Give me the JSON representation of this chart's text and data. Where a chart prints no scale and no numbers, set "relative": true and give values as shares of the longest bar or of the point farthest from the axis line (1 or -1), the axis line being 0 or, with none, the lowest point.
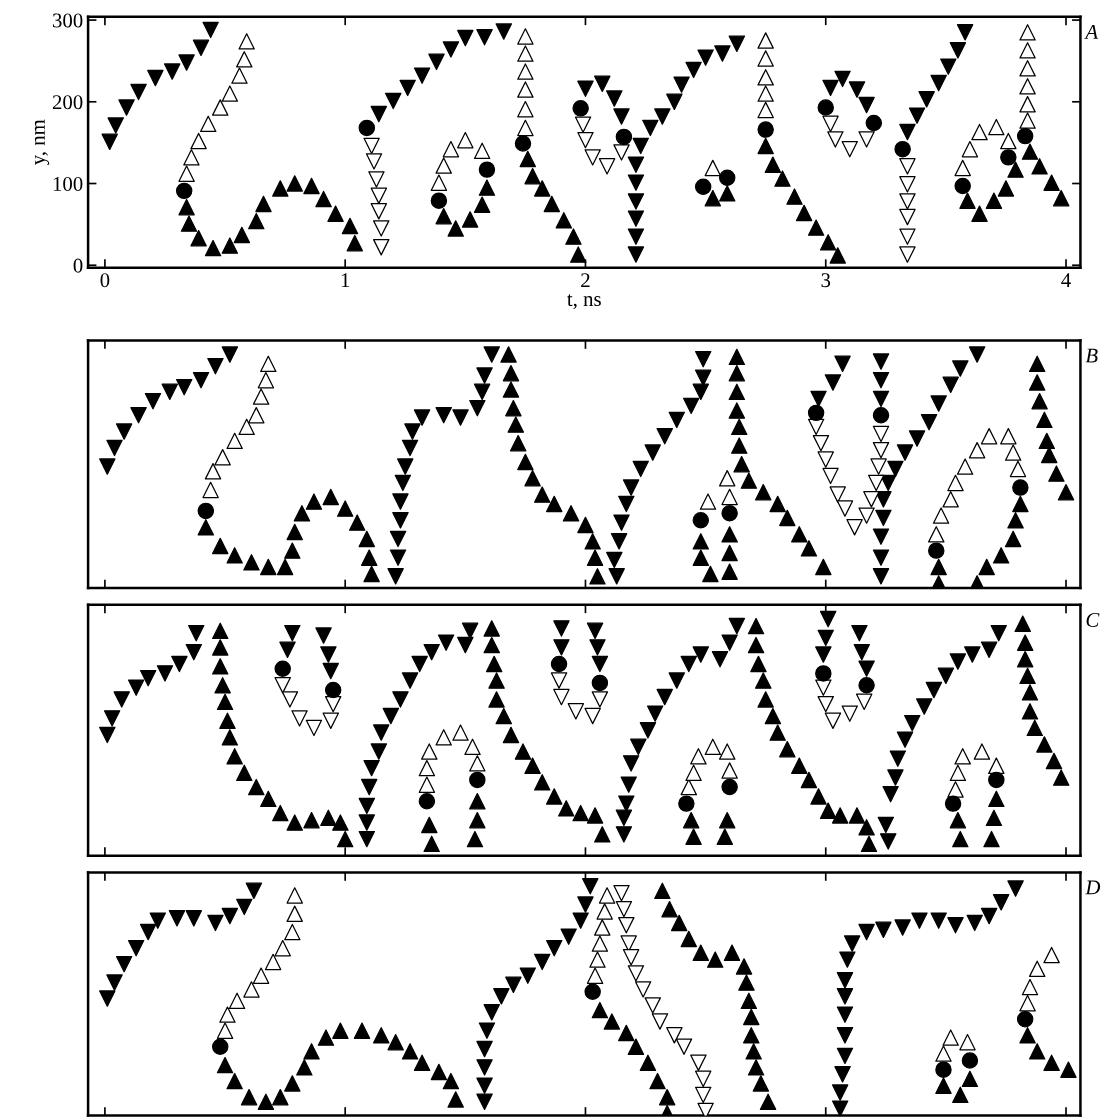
{
  "chart_data": [
    {
      "type": "scatter",
      "xlabel": "t, ns",
      "ylabel": "y, nm",
      "annotations": [
        "A"
      ],
      "xlim": [
        -0.07,
        4.06
      ],
      "ylim": [
        -3,
        304
      ],
      "xticks": [
        0,
        1,
        2,
        3,
        4
      ],
      "yticks": [
        0,
        100,
        200,
        300
      ],
      "grid": false,
      "legend": false,
      "series": [
        {
          "marker": "triangle_down",
          "color": "#000000",
          "x": [
            0.02,
            0.045,
            0.09,
            0.14,
            0.21,
            0.28,
            0.34,
            0.4,
            0.44,
            1.14,
            1.2,
            1.26,
            1.32,
            1.38,
            1.44,
            1.5,
            1.58,
            1.66,
            2.0,
            2.07,
            2.12,
            2.15,
            2.23,
            2.27,
            2.32,
            2.37,
            2.4,
            2.45,
            2.5,
            2.57,
            2.63,
            2.21,
            2.21,
            2.21,
            2.21,
            2.21,
            2.21,
            3.02,
            3.07,
            3.13,
            3.17,
            3.34,
            3.38,
            3.42,
            3.47,
            3.51,
            3.55,
            3.58
          ],
          "values": [
            151,
            171,
            193,
            212,
            229,
            237,
            248,
            266,
            288,
            185,
            201,
            217,
            232,
            249,
            264,
            278,
            279,
            286,
            216,
            222,
            204,
            182,
            146,
            168,
            182,
            200,
            221,
            239,
            254,
            259,
            271,
            123,
            101,
            78,
            57,
            35,
            13,
            217,
            228,
            215,
            196,
            163,
            183,
            203,
            223,
            243,
            263,
            285
          ]
        },
        {
          "marker": "triangle",
          "color": "#000000",
          "x": [
            0.34,
            0.35,
            0.39,
            0.45,
            0.52,
            0.57,
            0.63,
            0.66,
            0.73,
            0.79,
            0.86,
            0.91,
            0.96,
            1.02,
            1.04,
            1.41,
            1.46,
            1.52,
            1.57,
            1.59,
            1.76,
            1.78,
            1.82,
            1.86,
            1.91,
            1.95,
            1.97,
            2.53,
            2.59,
            2.75,
            2.78,
            2.82,
            2.87,
            2.91,
            2.96,
            3.01,
            3.05,
            3.59,
            3.64,
            3.7,
            3.75,
            3.79,
            3.85,
            3.89,
            3.94,
            3.98
          ],
          "values": [
            71,
            51,
            33,
            21,
            24,
            37,
            54,
            75,
            94,
            100,
            97,
            81,
            63,
            48,
            27,
            60,
            45,
            56,
            74,
            95,
            130,
            109,
            94,
            75,
            55,
            35,
            13,
            82,
            88,
            146,
            123,
            106,
            84,
            64,
            46,
            28,
            12,
            79,
            63,
            79,
            94,
            117,
            139,
            121,
            101,
            82
          ]
        },
        {
          "marker": "triangle",
          "color": "#ffffff",
          "x": [
            0.34,
            0.36,
            0.39,
            0.43,
            0.48,
            0.52,
            0.56,
            0.58,
            0.59,
            1.39,
            1.41,
            1.44,
            1.5,
            1.57,
            1.75,
            1.75,
            1.75,
            1.75,
            1.75,
            1.75,
            2.53,
            2.75,
            2.75,
            2.75,
            2.75,
            2.75,
            3.57,
            3.6,
            3.64,
            3.71,
            3.76,
            3.84,
            3.84,
            3.84,
            3.84,
            3.84,
            3.84
          ],
          "values": [
            112,
            132,
            152,
            173,
            193,
            210,
            232,
            252,
            274,
            101,
            122,
            142,
            153,
            140,
            168,
            191,
            215,
            237,
            259,
            280,
            119,
            190,
            210,
            230,
            253,
            275,
            119,
            142,
            163,
            169,
            152,
            177,
            197,
            219,
            241,
            263,
            285
          ]
        },
        {
          "marker": "triangle_down",
          "color": "#ffffff",
          "x": [
            1.11,
            1.12,
            1.13,
            1.14,
            1.14,
            1.15,
            1.15,
            1.99,
            2.0,
            2.03,
            2.09,
            2.15,
            3.02,
            3.04,
            3.1,
            3.17,
            3.34,
            3.34,
            3.34,
            3.34,
            3.34,
            3.34
          ],
          "values": [
            146,
            127,
            105,
            85,
            66,
            45,
            22,
            172,
            153,
            132,
            121,
            138,
            173,
            154,
            142,
            154,
            121,
            99,
            78,
            59,
            35,
            13
          ]
        },
        {
          "marker": "circle",
          "color": "#000000",
          "x": [
            0.33,
            1.09,
            1.39,
            1.59,
            1.74,
            1.98,
            2.16,
            2.49,
            2.59,
            2.75,
            3.0,
            3.2,
            3.32,
            3.57,
            3.76,
            3.83
          ],
          "values": [
            91,
            168,
            79,
            117,
            149,
            192,
            157,
            96,
            107,
            166,
            193,
            174,
            142,
            97,
            132,
            158
          ]
        }
      ]
    },
    {
      "type": "scatter",
      "relative": true,
      "annotations": [
        "B"
      ],
      "xlim": [
        -0.07,
        4.06
      ],
      "xticks": [
        0,
        1,
        2,
        3,
        4
      ],
      "tick_labels": false,
      "grid": false,
      "legend": false,
      "series": [
        {
          "marker": "triangle_down",
          "color": "#000000",
          "x": [
            0.01,
            0.04,
            0.08,
            0.14,
            0.2,
            0.27,
            0.33,
            0.4,
            0.46,
            0.52,
            1.21,
            1.22,
            1.22,
            1.23,
            1.23,
            1.24,
            1.25,
            1.27,
            1.28,
            1.32,
            1.41,
            1.48,
            1.55,
            1.57,
            1.58,
            1.61,
            2.13,
            2.12,
            2.14,
            2.15,
            2.17,
            2.19,
            2.23,
            2.28,
            2.33,
            2.38,
            2.44,
            2.48,
            2.49,
            2.49,
            2.97,
            3.03,
            3.07,
            3.23,
            3.23,
            3.23,
            3.26,
            3.24,
            3.24,
            3.23,
            3.23,
            3.23,
            3.29,
            3.33,
            3.38,
            3.43,
            3.47,
            3.52,
            3.56,
            3.63
          ],
          "values": [
            0.52,
            0.6,
            0.67,
            0.74,
            0.8,
            0.84,
            0.86,
            0.89,
            0.95,
            1.0,
            0.05,
            0.13,
            0.21,
            0.29,
            0.37,
            0.45,
            0.52,
            0.6,
            0.67,
            0.73,
            0.74,
            0.73,
            0.77,
            0.84,
            0.91,
            1.0,
            0.05,
            0.12,
            0.2,
            0.28,
            0.36,
            0.43,
            0.51,
            0.58,
            0.65,
            0.72,
            0.78,
            0.84,
            0.9,
            0.98,
            0.81,
            0.88,
            0.96,
            0.97,
            0.89,
            0.81,
            0.45,
            0.38,
            0.3,
            0.22,
            0.13,
            0.05,
            0.51,
            0.58,
            0.64,
            0.71,
            0.79,
            0.87,
            0.94,
            1.0
          ]
        },
        {
          "marker": "triangle",
          "color": "#000000",
          "x": [
            0.42,
            0.48,
            0.54,
            0.61,
            0.68,
            0.75,
            0.78,
            0.79,
            0.82,
            0.87,
            0.94,
            1.0,
            1.05,
            1.09,
            1.1,
            1.11,
            1.68,
            1.69,
            1.69,
            1.7,
            1.71,
            1.72,
            1.75,
            1.78,
            1.82,
            1.87,
            1.94,
            2.0,
            2.03,
            2.04,
            2.05,
            2.48,
            2.48,
            2.52,
            2.6,
            2.6,
            2.6,
            2.63,
            2.63,
            2.63,
            2.63,
            2.64,
            2.64,
            2.65,
            2.68,
            2.74,
            2.8,
            2.84,
            2.89,
            2.93,
            2.99,
            3.47,
            3.47,
            3.63,
            3.67,
            3.73,
            3.78,
            3.79,
            3.81,
            3.88,
            3.88,
            3.89,
            3.91,
            3.92,
            3.93,
            3.96,
            4.0
          ],
          "values": [
            0.26,
            0.18,
            0.14,
            0.11,
            0.09,
            0.09,
            0.16,
            0.24,
            0.32,
            0.37,
            0.39,
            0.34,
            0.28,
            0.21,
            0.13,
            0.06,
            1.0,
            0.92,
            0.85,
            0.77,
            0.7,
            0.62,
            0.54,
            0.47,
            0.4,
            0.36,
            0.32,
            0.27,
            0.2,
            0.13,
            0.05,
            0.2,
            0.13,
            0.06,
            0.23,
            0.15,
            0.07,
            0.99,
            0.92,
            0.84,
            0.76,
            0.69,
            0.61,
            0.53,
            0.46,
            0.41,
            0.36,
            0.3,
            0.23,
            0.17,
            0.09,
            0.09,
            0.02,
            0.02,
            0.09,
            0.14,
            0.21,
            0.29,
            0.36,
            0.96,
            0.88,
            0.8,
            0.72,
            0.63,
            0.57,
            0.49,
            0.41
          ]
        },
        {
          "marker": "triangle",
          "color": "#ffffff",
          "x": [
            0.44,
            0.45,
            0.49,
            0.54,
            0.59,
            0.63,
            0.65,
            0.67,
            0.68,
            2.49,
            2.51,
            2.59,
            2.6,
            3.46,
            3.48,
            3.52,
            3.54,
            3.58,
            3.63,
            3.68,
            3.76,
            3.78,
            3.8
          ],
          "values": [
            0.42,
            0.5,
            0.56,
            0.63,
            0.69,
            0.74,
            0.82,
            0.89,
            0.96,
            null,
            0.37,
            0.47,
            0.39,
            0.23,
            0.31,
            0.38,
            0.45,
            0.52,
            0.59,
            0.65,
            0.65,
            0.58,
            0.51
          ]
        },
        {
          "marker": "triangle_down",
          "color": "#ffffff",
          "x": [
            2.96,
            2.98,
            3.0,
            3.02,
            3.05,
            3.08,
            3.12,
            3.17,
            3.19,
            3.21,
            3.22,
            3.23,
            3.23
          ],
          "values": [
            0.69,
            0.62,
            0.55,
            0.48,
            0.4,
            0.34,
            0.26,
            0.31,
            0.38,
            0.45,
            0.52,
            0.59,
            0.66
          ]
        },
        {
          "marker": "circle",
          "color": "#000000",
          "x": [
            0.42,
            2.48,
            2.6,
            2.96,
            3.23,
            3.46,
            3.81
          ],
          "values": [
            0.33,
            0.29,
            0.32,
            0.75,
            0.74,
            0.16,
            0.43
          ]
        }
      ]
    },
    {
      "type": "scatter",
      "relative": true,
      "annotations": [
        "C"
      ],
      "xlim": [
        -0.07,
        4.06
      ],
      "xticks": [
        0,
        1,
        2,
        3,
        4
      ],
      "tick_labels": false,
      "grid": false,
      "legend": false,
      "series": [
        {
          "marker": "triangle_down",
          "color": "#000000",
          "x": [
            0.01,
            0.03,
            0.07,
            0.13,
            0.18,
            0.25,
            0.31,
            0.37,
            0.38,
            0.78,
            0.76,
            0.91,
            0.93,
            0.94,
            1.09,
            1.09,
            1.09,
            1.1,
            1.11,
            1.14,
            1.15,
            1.19,
            1.23,
            1.27,
            1.31,
            1.36,
            1.42,
            1.5,
            1.52,
            1.9,
            1.9,
            2.04,
            2.05,
            2.06,
            2.16,
            2.16,
            2.17,
            2.18,
            2.19,
            2.22,
            2.26,
            2.29,
            2.33,
            2.38,
            2.43,
            2.48,
            2.56,
            2.6,
            2.63,
            3.01,
            3.0,
            2.99,
            3.14,
            3.15,
            3.17,
            3.26,
            3.25,
            3.27,
            3.29,
            3.3,
            3.33,
            3.36,
            3.41,
            3.45,
            3.5,
            3.55,
            3.61,
            3.68,
            3.72
          ],
          "values": [
            0.51,
            0.58,
            0.66,
            0.71,
            0.75,
            0.77,
            0.81,
            0.86,
            0.94,
            0.94,
            0.87,
            0.93,
            0.85,
            0.78,
            0.14,
            0.07,
            0.21,
            0.29,
            0.37,
            0.44,
            0.52,
            0.59,
            0.66,
            0.74,
            0.81,
            0.86,
            0.9,
            0.89,
            0.95,
            0.96,
            0.88,
            0.95,
            0.88,
            0.81,
            0.09,
            0.16,
            0.22,
            0.3,
            0.39,
            0.46,
            0.53,
            0.6,
            0.67,
            0.74,
            0.81,
            0.85,
            0.83,
            0.9,
            0.97,
            1.0,
            0.92,
            0.85,
            0.94,
            0.86,
            0.79,
            0.06,
            0.13,
            0.26,
            0.33,
            0.41,
            0.49,
            0.56,
            0.63,
            0.7,
            0.76,
            0.82,
            0.85,
            0.87,
            0.94
          ]
        },
        {
          "marker": "triangle",
          "color": "#000000",
          "x": [
            0.48,
            0.48,
            0.48,
            0.49,
            0.5,
            0.51,
            0.52,
            0.54,
            0.58,
            0.63,
            0.68,
            0.73,
            0.79,
            0.86,
            0.93,
            0.98,
            1.0,
            1.35,
            1.36,
            1.55,
            1.55,
            1.54,
            1.61,
            1.61,
            1.62,
            1.63,
            1.63,
            1.66,
            1.69,
            1.74,
            1.78,
            1.82,
            1.87,
            1.92,
            1.98,
            2.04,
            2.07,
            2.44,
            2.45,
            2.59,
            2.58,
            2.71,
            2.71,
            2.72,
            2.74,
            2.75,
            2.78,
            2.8,
            2.84,
            2.89,
            2.93,
            2.97,
            3.01,
            3.06,
            3.13,
            3.17,
            3.18,
            3.55,
            3.56,
            3.71,
            3.7,
            3.69,
            3.82,
            3.83,
            3.83,
            3.84,
            3.85,
            3.85,
            3.87,
            3.91,
            3.95,
            3.98
          ],
          "values": [
            0.95,
            0.88,
            0.8,
            0.72,
            0.65,
            0.57,
            0.5,
            0.42,
            0.35,
            0.29,
            0.24,
            0.18,
            0.14,
            0.15,
            0.16,
            0.14,
            0.07,
            0.13,
            0.05,
            0.23,
            0.15,
            0.07,
            0.96,
            0.89,
            0.81,
            0.74,
            0.66,
            0.59,
            0.51,
            0.44,
            0.38,
            0.31,
            0.25,
            0.2,
            0.18,
            0.17,
            0.09,
            0.15,
            0.08,
            0.15,
            0.08,
            0.97,
            0.89,
            0.81,
            0.74,
            0.66,
            0.59,
            0.52,
            0.45,
            0.38,
            0.32,
            0.25,
            0.19,
            0.17,
            0.17,
            0.12,
            0.05,
            0.15,
            0.07,
            0.24,
            0.16,
            0.07,
            0.98,
            0.9,
            0.83,
            0.76,
            0.69,
            0.61,
            0.54,
            0.47,
            0.4,
            0.33
          ]
        },
        {
          "marker": "triangle",
          "color": "#ffffff",
          "x": [
            1.34,
            1.34,
            1.35,
            1.41,
            1.48,
            1.53,
            1.55,
            2.43,
            2.45,
            2.47,
            2.53,
            2.59,
            2.6,
            3.54,
            3.55,
            3.57,
            3.65,
            3.71
          ],
          "values": [
            0.3,
            0.37,
            0.44,
            0.5,
            0.52,
            0.46,
            0.39,
            0.29,
            0.35,
            0.42,
            0.46,
            0.44,
            0.36,
            0.28,
            0.35,
            0.42,
            0.44,
            0.38
          ]
        },
        {
          "marker": "triangle_down",
          "color": "#ffffff",
          "x": [
            0.74,
            0.77,
            0.81,
            0.87,
            0.94,
            0.95,
            1.89,
            1.9,
            1.96,
            2.03,
            2.06,
            2.99,
            3.0,
            3.03,
            3.1,
            3.16
          ],
          "values": [
            0.72,
            0.66,
            0.58,
            0.54,
            0.57,
            0.64,
            0.74,
            0.67,
            0.61,
            0.59,
            0.66,
            0.71,
            0.64,
            0.57,
            0.6,
            0.65
          ]
        },
        {
          "marker": "circle",
          "color": "#000000",
          "x": [
            0.74,
            0.95,
            1.89,
            2.06,
            2.99,
            3.17,
            1.34,
            1.55,
            2.42,
            2.6,
            3.53,
            3.71
          ],
          "values": [
            0.79,
            0.7,
            0.81,
            0.73,
            0.77,
            0.72,
            0.23,
            0.32,
            0.22,
            0.29,
            0.22,
            0.32
          ]
        }
      ]
    },
    {
      "type": "scatter",
      "relative": true,
      "annotations": [
        "D"
      ],
      "xlim": [
        -0.07,
        4.06
      ],
      "xticks": [
        0,
        1,
        2,
        3,
        4
      ],
      "tick_labels": false,
      "grid": false,
      "legend": false,
      "series": [
        {
          "marker": "triangle_down",
          "color": "#000000",
          "x": [
            0.01,
            0.04,
            0.08,
            0.13,
            0.18,
            0.22,
            0.3,
            0.37,
            0.46,
            0.52,
            0.58,
            0.62,
            1.58,
            1.58,
            1.58,
            1.58,
            1.59,
            1.61,
            1.65,
            1.7,
            1.76,
            1.82,
            1.87,
            1.93,
            1.98,
            2.0,
            2.02,
            3.06,
            3.06,
            3.07,
            3.08,
            3.08,
            3.08,
            3.08,
            3.08,
            3.09,
            3.11,
            3.17,
            3.24,
            3.32,
            3.39,
            3.47,
            3.54,
            3.62,
            3.68,
            3.73,
            3.79
          ],
          "values": [
            0.51,
            0.58,
            0.66,
            0.73,
            0.8,
            0.85,
            0.86,
            0.86,
            0.84,
            0.87,
            0.91,
            0.98,
            0.06,
            0.13,
            0.21,
            0.29,
            0.37,
            0.45,
            0.52,
            0.57,
            0.61,
            0.67,
            0.73,
            0.78,
            0.85,
            0.92,
            1.0,
            0.03,
            0.1,
            0.18,
            0.26,
            0.35,
            0.44,
            0.52,
            0.59,
            0.68,
            0.75,
            0.8,
            0.81,
            0.82,
            0.85,
            0.85,
            0.83,
            0.84,
            0.87,
            0.93,
            0.99
          ]
        },
        {
          "marker": "triangle",
          "color": "#000000",
          "x": [
            0.5,
            0.54,
            0.6,
            0.67,
            0.73,
            0.78,
            0.83,
            0.86,
            0.92,
            0.98,
            1.07,
            1.15,
            1.21,
            1.27,
            1.32,
            1.39,
            1.44,
            1.46,
            2.06,
            2.11,
            2.17,
            2.21,
            2.26,
            2.3,
            2.34,
            2.34,
            2.32,
            2.35,
            2.39,
            2.43,
            2.48,
            2.54,
            2.61,
            2.66,
            2.67,
            2.68,
            2.69,
            2.69,
            2.7,
            2.71,
            2.73,
            2.76,
            3.49,
            3.56,
            3.6,
            3.84,
            3.88,
            3.94,
            4.01
          ],
          "values": [
            0.22,
            0.15,
            0.08,
            0.06,
            0.08,
            0.14,
            0.21,
            0.28,
            0.34,
            0.37,
            0.37,
            0.35,
            0.32,
            0.28,
            0.23,
            0.19,
            0.15,
            0.07,
            0.46,
            0.41,
            0.36,
            0.3,
            0.23,
            0.15,
            0.08,
            0.01,
            0.98,
            0.9,
            0.84,
            0.77,
            0.71,
            0.68,
            0.71,
            0.65,
            0.58,
            0.5,
            0.43,
            0.35,
            0.28,
            0.21,
            0.14,
            0.06,
            0.13,
            0.09,
            0.16,
            0.35,
            0.28,
            0.23,
            0.2
          ]
        },
        {
          "marker": "triangle",
          "color": "#ffffff",
          "x": [
            0.5,
            0.51,
            0.55,
            0.61,
            0.65,
            0.7,
            0.74,
            0.78,
            0.79,
            0.79,
            2.04,
            2.05,
            2.06,
            2.07,
            2.08,
            2.09,
            3.49,
            3.52,
            3.59,
            3.84,
            3.85,
            3.88,
            3.94
          ],
          "values": [
            0.37,
            0.44,
            0.5,
            0.55,
            0.61,
            0.67,
            0.73,
            0.8,
            0.88,
            0.96,
            0.61,
            0.68,
            0.75,
            0.82,
            0.89,
            0.96,
            0.27,
            0.34,
            0.32,
            0.49,
            0.56,
            0.64,
            0.7
          ]
        },
        {
          "marker": "triangle_down",
          "color": "#ffffff",
          "x": [
            2.15,
            2.16,
            2.17,
            2.18,
            2.19,
            2.21,
            2.24,
            2.28,
            2.31,
            2.37,
            2.41,
            2.47,
            2.49,
            2.49,
            2.5
          ],
          "values": [
            0.97,
            0.9,
            0.83,
            0.75,
            0.69,
            0.62,
            0.55,
            0.48,
            0.41,
            0.35,
            0.3,
            0.23,
            0.16,
            0.09,
            0.02
          ]
        },
        {
          "marker": "circle",
          "color": "#000000",
          "x": [
            0.48,
            2.03,
            3.49,
            3.6,
            3.83
          ],
          "values": [
            0.3,
            0.54,
            0.2,
            0.24,
            0.42
          ]
        }
      ]
    }
  ]
}
